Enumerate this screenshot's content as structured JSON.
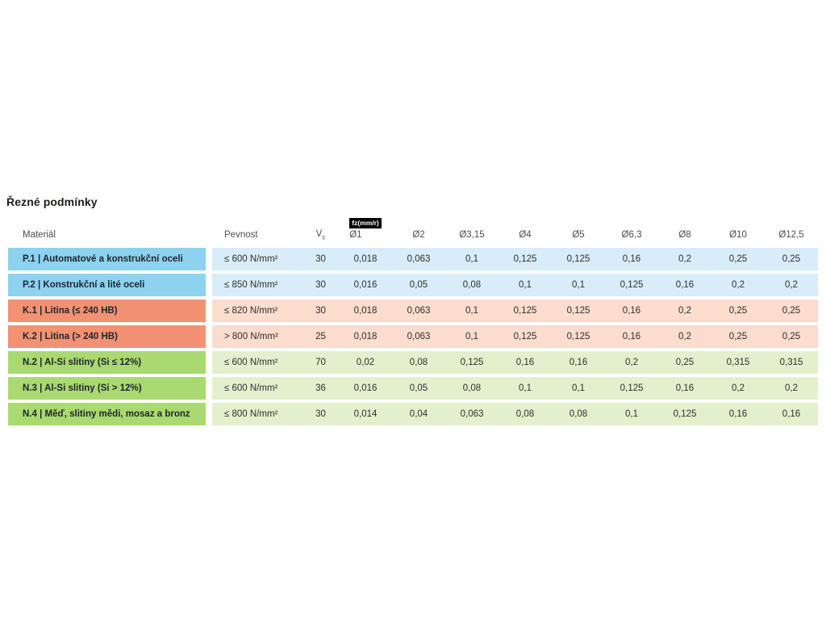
{
  "page": {
    "title": "Řezné podmínky"
  },
  "table": {
    "badge": "fz(mm/r)",
    "columns": {
      "material": "Materiál",
      "pevnost": "Pevnost",
      "vc_base": "V",
      "vc_sub": "c",
      "diameters": [
        "Ø1",
        "Ø2",
        "Ø3,15",
        "Ø4",
        "Ø5",
        "Ø6,3",
        "Ø8",
        "Ø10",
        "Ø12,5"
      ]
    },
    "rows": [
      {
        "group": "P",
        "label": "P.1 | Automatové a konstrukční oceli",
        "pevnost": "≤ 600 N/mm²",
        "vc": "30",
        "values": [
          "0,018",
          "0,063",
          "0,1",
          "0,125",
          "0,125",
          "0,16",
          "0,2",
          "0,25",
          "0,25"
        ]
      },
      {
        "group": "P",
        "label": "P.2 | Konstrukční a lité oceli",
        "pevnost": "≤ 850 N/mm²",
        "vc": "30",
        "values": [
          "0,016",
          "0,05",
          "0,08",
          "0,1",
          "0,1",
          "0,125",
          "0,16",
          "0,2",
          "0,2"
        ]
      },
      {
        "group": "K",
        "label": "K.1 | Litina (≤ 240 HB)",
        "pevnost": "≤ 820 N/mm²",
        "vc": "30",
        "values": [
          "0,018",
          "0,063",
          "0,1",
          "0,125",
          "0,125",
          "0,16",
          "0,2",
          "0,25",
          "0,25"
        ]
      },
      {
        "group": "K",
        "label": "K.2 | Litina (> 240 HB)",
        "pevnost": "> 800 N/mm²",
        "vc": "25",
        "values": [
          "0,018",
          "0,063",
          "0,1",
          "0,125",
          "0,125",
          "0,16",
          "0,2",
          "0,25",
          "0,25"
        ]
      },
      {
        "group": "N",
        "label": "N.2 | Al-Si slitiny (Si ≤ 12%)",
        "pevnost": "≤ 600 N/mm²",
        "vc": "70",
        "values": [
          "0,02",
          "0,08",
          "0,125",
          "0,16",
          "0,16",
          "0,2",
          "0,25",
          "0,315",
          "0,315"
        ]
      },
      {
        "group": "N",
        "label": "N.3 | Al-Si slitiny (Si > 12%)",
        "pevnost": "≤ 600 N/mm²",
        "vc": "36",
        "values": [
          "0,016",
          "0,05",
          "0,08",
          "0,1",
          "0,1",
          "0,125",
          "0,16",
          "0,2",
          "0,2"
        ]
      },
      {
        "group": "N",
        "label": "N.4 | Měď, slitiny mědi, mosaz a bronz",
        "pevnost": "≤ 800 N/mm²",
        "vc": "30",
        "values": [
          "0,014",
          "0,04",
          "0,063",
          "0,08",
          "0,08",
          "0,1",
          "0,125",
          "0,16",
          "0,16"
        ]
      }
    ]
  },
  "colors": {
    "badge_bg": "#000000",
    "badge_fg": "#ffffff",
    "groups": {
      "P": {
        "label": "#8dd2ef",
        "row": "#d8edf9"
      },
      "K": {
        "label": "#f29272",
        "row": "#fbdccd"
      },
      "N": {
        "label": "#aad970",
        "row": "#e4efcd"
      }
    }
  }
}
